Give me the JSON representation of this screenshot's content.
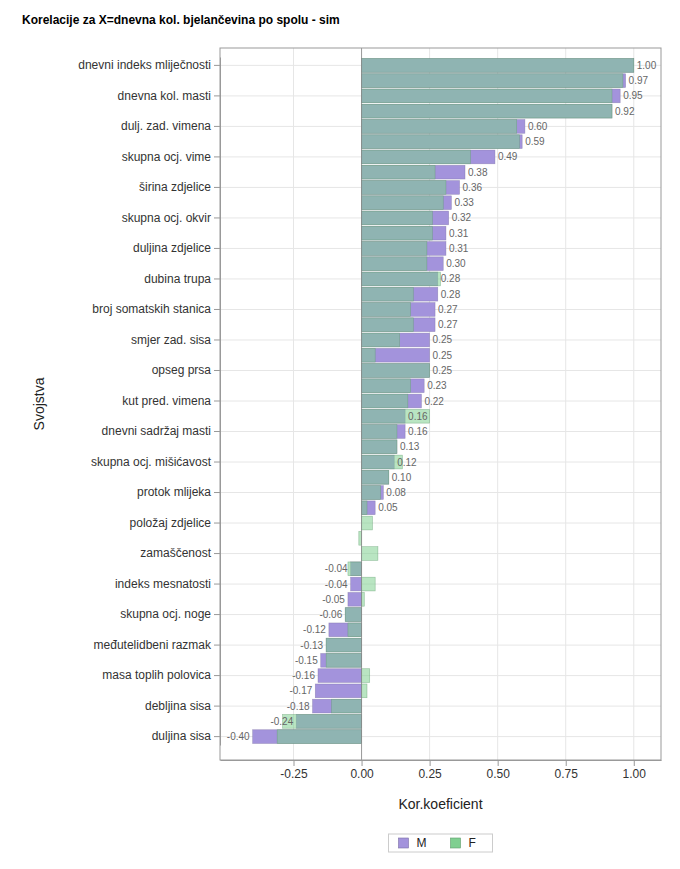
{
  "chart_data": {
    "type": "bar",
    "orientation": "horizontal",
    "title": "Korelacije za X=dnevna kol. bjelančevina po spolu - sim",
    "x_label": "Kor.koeficient",
    "y_label": "Svojstva",
    "categories": [
      "dnevni indeks mliječnosti",
      null,
      "dnevna kol. masti",
      null,
      "dulj. zad. vimena",
      null,
      "skupna ocj. vime",
      null,
      "širina zdjelice",
      null,
      "skupna ocj. okvir",
      null,
      "duljina zdjelice",
      null,
      "dubina trupa",
      null,
      "broj somatskih stanica",
      null,
      "smjer zad. sisa",
      null,
      "opseg prsa",
      null,
      "kut pred. vimena",
      null,
      "dnevni sadržaj masti",
      null,
      "skupna ocj. mišićavost",
      null,
      "protok mlijeka",
      null,
      "položaj zdjelice",
      null,
      "zamaščenost",
      null,
      "indeks mesnatosti",
      null,
      "skupna ocj. noge",
      null,
      "međutelidbeni razmak",
      null,
      "masa toplih polovica",
      null,
      "debljina sisa",
      null,
      "duljina sisa"
    ],
    "series": [
      {
        "name": "M",
        "color": "#a393dc",
        "data_labels": true,
        "values": [
          1.0,
          0.97,
          0.95,
          0.92,
          0.6,
          0.59,
          0.49,
          0.38,
          0.36,
          0.33,
          0.32,
          0.31,
          0.31,
          0.3,
          0.28,
          0.28,
          0.27,
          0.27,
          0.25,
          0.25,
          0.25,
          0.23,
          0.22,
          0.16,
          0.16,
          0.13,
          0.12,
          0.1,
          0.08,
          0.05,
          null,
          null,
          null,
          -0.04,
          -0.04,
          -0.05,
          -0.06,
          -0.12,
          -0.13,
          -0.15,
          -0.16,
          -0.17,
          -0.18,
          -0.24,
          -0.4
        ],
        "value_labels": [
          "1.00",
          "0.97",
          "0.95",
          "0.92",
          "0.60",
          "0.59",
          "0.49",
          "0.38",
          "0.36",
          "0.33",
          "0.32",
          "0.31",
          "0.31",
          "0.30",
          "0.28",
          "0.28",
          "0.27",
          "0.27",
          "0.25",
          "0.25",
          "0.25",
          "0.23",
          "0.22",
          "0.16",
          "0.16",
          "0.13",
          "0.12",
          "0.10",
          "0.08",
          "0.05",
          null,
          null,
          null,
          "-0.04",
          "-0.04",
          "-0.05",
          "-0.06",
          "-0.12",
          "-0.13",
          "-0.15",
          "-0.16",
          "-0.17",
          "-0.18",
          "-0.24",
          "-0.40"
        ]
      },
      {
        "name": "F",
        "color": "#7fcf90",
        "values": [
          1.0,
          0.96,
          0.92,
          0.92,
          0.57,
          0.58,
          0.4,
          0.27,
          0.31,
          0.3,
          0.26,
          0.26,
          0.24,
          0.24,
          0.29,
          0.19,
          0.18,
          0.19,
          0.14,
          0.05,
          0.25,
          0.18,
          0.17,
          0.25,
          0.13,
          0.13,
          0.15,
          0.1,
          0.07,
          0.02,
          0.04,
          -0.01,
          0.06,
          -0.05,
          0.05,
          0.01,
          -0.06,
          -0.05,
          -0.13,
          -0.13,
          0.03,
          0.02,
          -0.11,
          -0.29,
          -0.31
        ]
      }
    ],
    "xlim": [
      -0.52,
      1.1
    ],
    "xticks": [
      {
        "value": -0.25,
        "label": "-0.25"
      },
      {
        "value": 0,
        "label": "0.00"
      },
      {
        "value": 0.25,
        "label": "0.25"
      },
      {
        "value": 0.5,
        "label": "0.50"
      },
      {
        "value": 0.75,
        "label": "0.75"
      },
      {
        "value": 1,
        "label": "1.00"
      }
    ],
    "grid": true,
    "legend": "bottom"
  }
}
